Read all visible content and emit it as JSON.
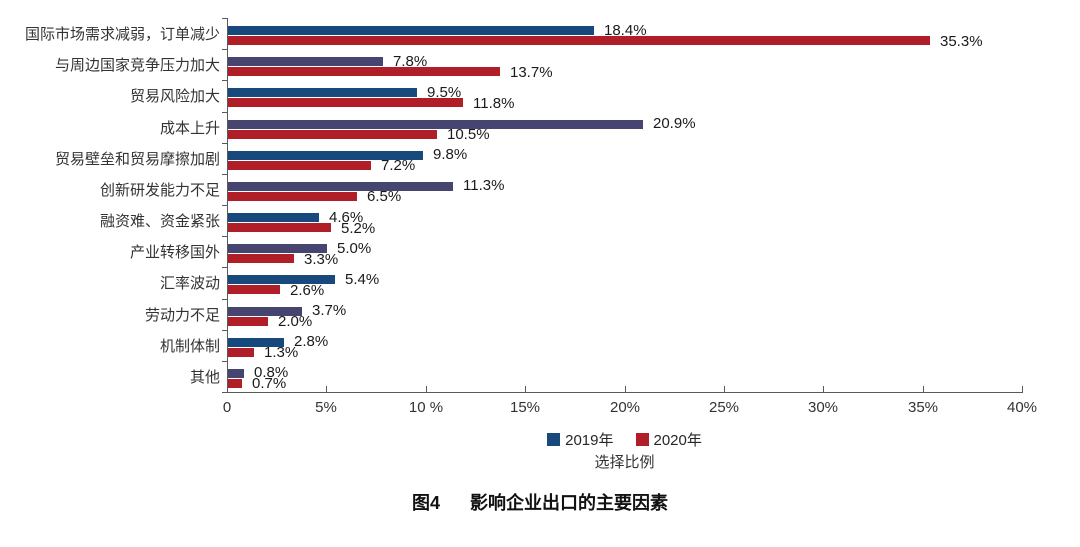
{
  "figure": {
    "caption_prefix": "图4",
    "caption_text": "影响企业出口的主要因素"
  },
  "chart_data": {
    "type": "bar",
    "orientation": "horizontal",
    "title": "图4 影响企业出口的主要因素",
    "xlabel": "选择比例",
    "ylabel": "",
    "xlim": [
      0,
      40
    ],
    "x_ticks": [
      "0",
      "5%",
      "10 %",
      "15%",
      "20%",
      "25%",
      "30%",
      "35%",
      "40%"
    ],
    "grid": false,
    "legend_position": "bottom-center",
    "categories": [
      "国际市场需求减弱，订单减少",
      "与周边国家竞争压力加大",
      "贸易风险加大",
      "成本上升",
      "贸易壁垒和贸易摩擦加剧",
      "创新研发能力不足",
      "融资难、资金紧张",
      "产业转移国外",
      "汇率波动",
      "劳动力不足",
      "机制体制",
      "其他"
    ],
    "series": [
      {
        "name": "2019年",
        "color": "#17497C",
        "color_alt": "#46456F",
        "values": [
          18.4,
          7.8,
          9.5,
          20.9,
          9.8,
          11.3,
          4.6,
          5.0,
          5.4,
          3.7,
          2.8,
          0.8
        ]
      },
      {
        "name": "2020年",
        "color": "#B01F27",
        "color_alt": "#B01F27",
        "values": [
          35.3,
          13.7,
          11.8,
          10.5,
          7.2,
          6.5,
          5.2,
          3.3,
          2.6,
          2.0,
          1.3,
          0.7
        ]
      }
    ],
    "legend": [
      {
        "label": "2019年",
        "color": "#17497C"
      },
      {
        "label": "2020年",
        "color": "#B01F27"
      }
    ],
    "value_label_format": "percent_one_decimal",
    "axis_color": "#595959"
  }
}
